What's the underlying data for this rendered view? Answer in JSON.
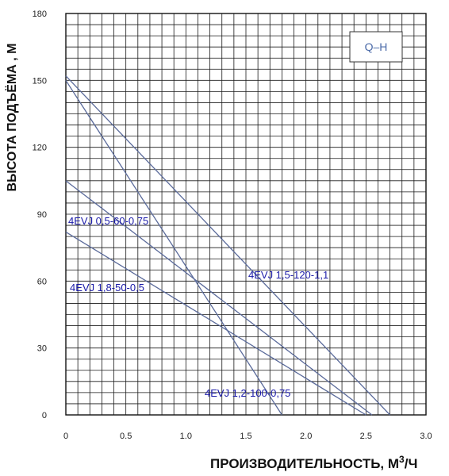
{
  "chart_data": {
    "type": "line",
    "title": "",
    "legend_label": "Q–H",
    "xlabel": "ПРОИЗВОДИТЕЛЬНОСТЬ, М",
    "xlabel_sup": "3",
    "xlabel_tail": "/Ч",
    "ylabel": "ВЫСОТА ПОДЪЁМА , М",
    "xlim": [
      0,
      3.0
    ],
    "ylim": [
      0,
      180
    ],
    "x_ticks": [
      "0",
      "0.5",
      "1.0",
      "1.5",
      "2.0",
      "2.5",
      "3.0"
    ],
    "y_ticks": [
      "0",
      "30",
      "60",
      "90",
      "120",
      "150",
      "180"
    ],
    "grid": true,
    "series": [
      {
        "name": "4EVJ 0,5-60-0,75",
        "x": [
          0,
          1.8
        ],
        "y": [
          150,
          0
        ]
      },
      {
        "name": "4EVJ 1,5-120-1,1",
        "x": [
          0,
          2.7
        ],
        "y": [
          152,
          0
        ]
      },
      {
        "name": "4EVJ 1,8-50-0,5",
        "x": [
          0,
          2.5
        ],
        "y": [
          82,
          0
        ]
      },
      {
        "name": "4EVJ 1,2-100-0,75",
        "x": [
          0,
          2.55
        ],
        "y": [
          105,
          0
        ]
      }
    ],
    "colors": {
      "line": "#5a6a9a",
      "grid": "#1a1a1a",
      "label": "#1a1aa8"
    }
  }
}
